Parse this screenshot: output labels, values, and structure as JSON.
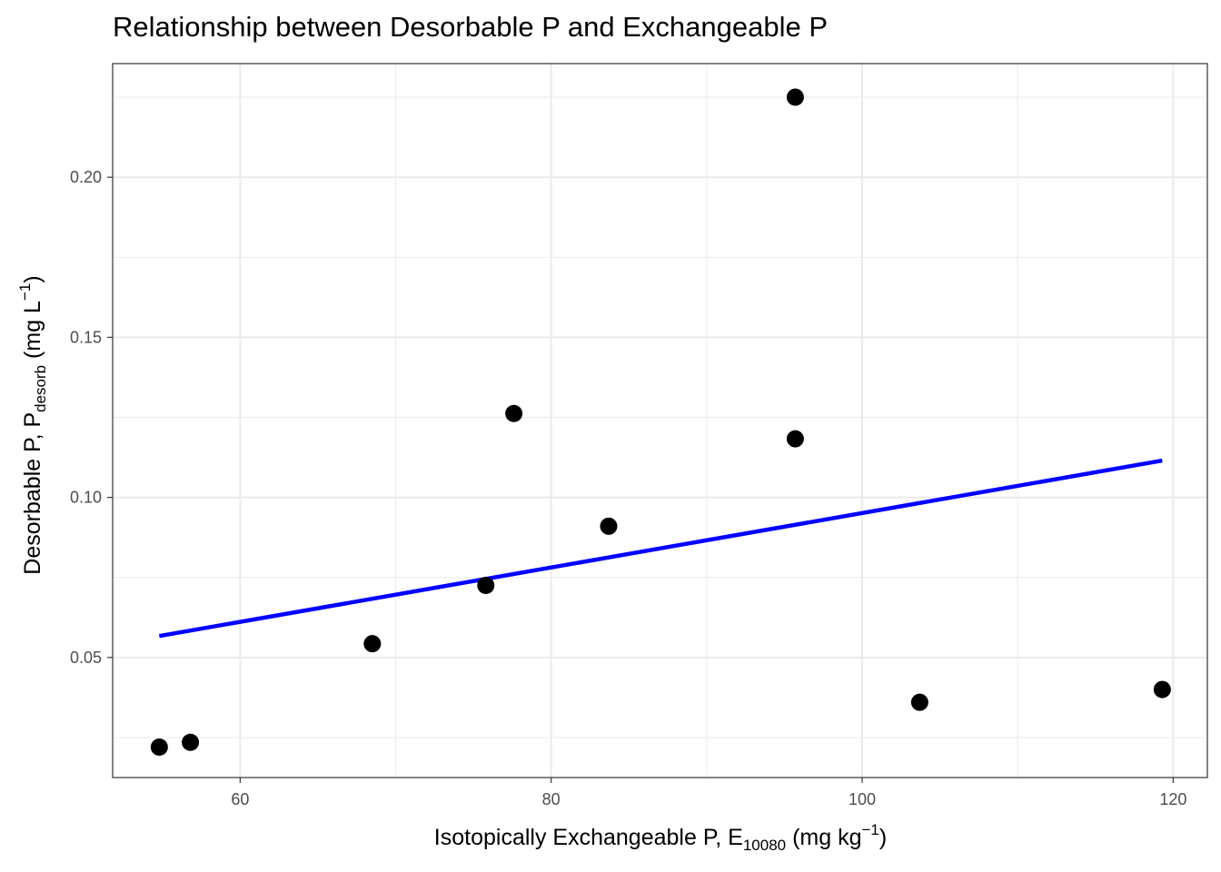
{
  "chart_data": {
    "type": "scatter",
    "title": "Relationship between Desorbable P and Exchangeable P",
    "xlabel": {
      "main": "Isotopically Exchangeable P, E",
      "sub": "10080",
      "unit_open": " (mg kg",
      "sup": "−1",
      "unit_close": ")"
    },
    "ylabel": {
      "main": "Desorbable P, P",
      "sub": "desorb",
      "unit_open": " (mg L",
      "sup": "−1",
      "unit_close": ")"
    },
    "xlim": [
      51.8,
      122.2
    ],
    "ylim": [
      0.0125,
      0.2355
    ],
    "x_ticks": [
      60,
      80,
      100,
      120
    ],
    "x_tick_labels": [
      "60",
      "80",
      "100",
      "120"
    ],
    "y_ticks": [
      0.05,
      0.1,
      0.15,
      0.2
    ],
    "y_tick_labels": [
      "0.05",
      "0.10",
      "0.15",
      "0.20"
    ],
    "grid": true,
    "points": [
      {
        "x": 54.8,
        "y": 0.022
      },
      {
        "x": 56.8,
        "y": 0.0235
      },
      {
        "x": 68.5,
        "y": 0.0543
      },
      {
        "x": 75.8,
        "y": 0.0725
      },
      {
        "x": 77.6,
        "y": 0.1262
      },
      {
        "x": 83.7,
        "y": 0.091
      },
      {
        "x": 95.7,
        "y": 0.225
      },
      {
        "x": 95.7,
        "y": 0.1183
      },
      {
        "x": 103.7,
        "y": 0.036
      },
      {
        "x": 119.3,
        "y": 0.04
      }
    ],
    "fit_line": {
      "x": [
        54.8,
        119.3
      ],
      "y": [
        0.0567,
        0.1115
      ],
      "color": "#0000ff"
    },
    "point_color": "#000000",
    "panel_border_color": "#333333",
    "grid_color": "#ebebeb"
  }
}
